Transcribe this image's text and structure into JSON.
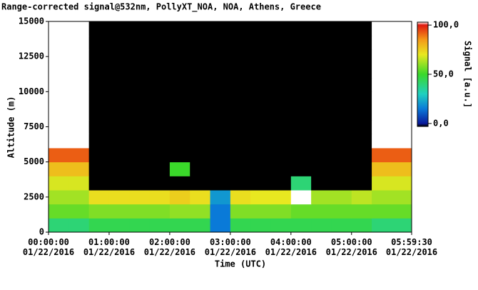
{
  "chart_data": {
    "type": "heatmap",
    "title": "Range-corrected signal@532nm, PollyXT_NOA, NOA, Athens, Greece",
    "x_label": "Time (UTC)",
    "y_label": "Altitude (m)",
    "colorbar_label": "Signal [a.u.]",
    "xlim": [
      0,
      21570
    ],
    "xticks": [
      {
        "value": 0,
        "label": "00:00:00\n01/22/2016"
      },
      {
        "value": 3600,
        "label": "01:00:00\n01/22/2016"
      },
      {
        "value": 7200,
        "label": "02:00:00\n01/22/2016"
      },
      {
        "value": 10800,
        "label": "03:00:00\n01/22/2016"
      },
      {
        "value": 14400,
        "label": "04:00:00\n01/22/2016"
      },
      {
        "value": 18000,
        "label": "05:00:00\n01/22/2016"
      },
      {
        "value": 21570,
        "label": "05:59:30\n01/22/2016"
      }
    ],
    "ylim": [
      0,
      15000
    ],
    "yticks": [
      0,
      2500,
      5000,
      7500,
      10000,
      12500,
      15000
    ],
    "zlim": [
      -3,
      103
    ],
    "zticks": [
      {
        "value": 0,
        "label": "0,0"
      },
      {
        "value": 50,
        "label": "50,0"
      },
      {
        "value": 100,
        "label": "100,0"
      }
    ],
    "colormap": [
      {
        "value": -3,
        "color": "#000000"
      },
      {
        "value": 0,
        "color": "#0a1a9c"
      },
      {
        "value": 15,
        "color": "#0a7ad8"
      },
      {
        "value": 30,
        "color": "#1fd0c0"
      },
      {
        "value": 50,
        "color": "#3ad82a"
      },
      {
        "value": 70,
        "color": "#e8e820"
      },
      {
        "value": 85,
        "color": "#f49a18"
      },
      {
        "value": 100,
        "color": "#e01a10"
      },
      {
        "value": 103,
        "color": "#ffffff"
      }
    ],
    "x_bins": [
      0,
      1200,
      2400,
      3600,
      4800,
      6000,
      7200,
      8400,
      9600,
      10800,
      12000,
      13200,
      14400,
      15600,
      16800,
      18000,
      19200,
      20400,
      21570
    ],
    "y_bins": [
      0,
      1000,
      2000,
      3000,
      4000,
      5000,
      6000,
      7000,
      8000,
      9000,
      10000,
      11000,
      12000,
      13000,
      14000,
      15000
    ],
    "z": [
      [
        40,
        40,
        45,
        45,
        45,
        45,
        45,
        45,
        15,
        45,
        45,
        45,
        45,
        45,
        45,
        45,
        40,
        40
      ],
      [
        55,
        55,
        58,
        58,
        58,
        58,
        60,
        60,
        15,
        58,
        58,
        58,
        55,
        55,
        55,
        55,
        55,
        55
      ],
      [
        62,
        62,
        72,
        72,
        72,
        72,
        75,
        72,
        20,
        72,
        70,
        70,
        104,
        62,
        62,
        65,
        62,
        62
      ],
      [
        68,
        68,
        -5,
        -5,
        -5,
        -5,
        -5,
        -5,
        -5,
        -5,
        -5,
        -5,
        40,
        -5,
        -5,
        -5,
        68,
        68
      ],
      [
        78,
        78,
        -5,
        -5,
        -5,
        -5,
        50,
        -5,
        -5,
        -5,
        -5,
        -5,
        -5,
        -5,
        -5,
        -5,
        78,
        78
      ],
      [
        92,
        92,
        -5,
        -5,
        -5,
        -5,
        -5,
        -5,
        -5,
        -5,
        -5,
        -5,
        -5,
        -5,
        -5,
        -5,
        92,
        92
      ],
      [
        104,
        104,
        -5,
        -5,
        -5,
        -5,
        -5,
        -5,
        -5,
        -5,
        -5,
        -5,
        -5,
        -5,
        -5,
        -5,
        104,
        104
      ],
      [
        110,
        110,
        -5,
        -5,
        -5,
        -5,
        -5,
        -5,
        -5,
        -5,
        -5,
        -5,
        -5,
        -5,
        -5,
        -5,
        110,
        110
      ],
      [
        110,
        110,
        -5,
        -5,
        -5,
        -5,
        -5,
        -5,
        -5,
        -5,
        -5,
        -5,
        -5,
        -5,
        -5,
        -5,
        110,
        110
      ],
      [
        110,
        110,
        -5,
        -5,
        -5,
        -5,
        -5,
        -5,
        -5,
        -5,
        -5,
        -5,
        -5,
        -5,
        -5,
        -5,
        110,
        110
      ],
      [
        110,
        110,
        -5,
        -5,
        -5,
        -5,
        -5,
        -5,
        -5,
        -5,
        -5,
        -5,
        -5,
        -5,
        -5,
        -5,
        110,
        110
      ],
      [
        110,
        110,
        -5,
        -5,
        -5,
        -5,
        -5,
        -5,
        -5,
        -5,
        -5,
        -5,
        -5,
        -5,
        -5,
        -5,
        110,
        110
      ],
      [
        110,
        110,
        -5,
        -5,
        -5,
        -5,
        -5,
        -5,
        -5,
        -5,
        -5,
        -5,
        -5,
        -5,
        -5,
        -5,
        110,
        110
      ],
      [
        110,
        110,
        -5,
        -5,
        -5,
        -5,
        -5,
        -5,
        -5,
        -5,
        -5,
        -5,
        -5,
        -5,
        -5,
        -5,
        110,
        110
      ],
      [
        110,
        110,
        -5,
        -5,
        -5,
        -5,
        -5,
        -5,
        -5,
        -5,
        -5,
        -5,
        -5,
        -5,
        -5,
        -5,
        110,
        110
      ]
    ]
  }
}
